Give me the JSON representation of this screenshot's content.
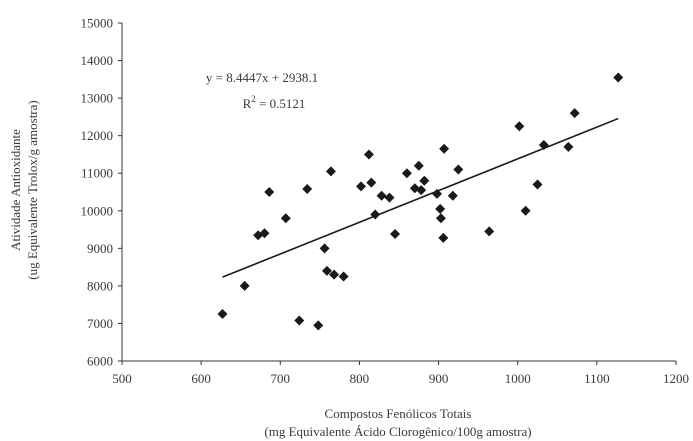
{
  "chart_data": {
    "type": "scatter",
    "title": "",
    "xlabel": [
      "Compostos Fenólicos Totais",
      "(mg Equivalente Ácido Clorogênico/100g amostra)"
    ],
    "ylabel": [
      "Atividade Antioxidante",
      "(ug Equivalente Trolox/g amostra)"
    ],
    "xlim": [
      500,
      1200
    ],
    "ylim": [
      6000,
      15000
    ],
    "x_ticks": [
      500,
      600,
      700,
      800,
      900,
      1000,
      1100,
      1200
    ],
    "y_ticks": [
      6000,
      7000,
      8000,
      9000,
      10000,
      11000,
      12000,
      13000,
      14000,
      15000
    ],
    "grid": false,
    "marker": "diamond",
    "marker_color": "#1a1a1a",
    "points": [
      [
        627,
        7250
      ],
      [
        655,
        8000
      ],
      [
        672,
        9350
      ],
      [
        680,
        9400
      ],
      [
        686,
        10500
      ],
      [
        707,
        9800
      ],
      [
        724,
        7080
      ],
      [
        734,
        10580
      ],
      [
        748,
        6950
      ],
      [
        756,
        9000
      ],
      [
        759,
        8400
      ],
      [
        764,
        11050
      ],
      [
        768,
        8300
      ],
      [
        780,
        8250
      ],
      [
        802,
        10650
      ],
      [
        812,
        11500
      ],
      [
        815,
        10750
      ],
      [
        820,
        9900
      ],
      [
        828,
        10400
      ],
      [
        838,
        10350
      ],
      [
        845,
        9380
      ],
      [
        860,
        11000
      ],
      [
        870,
        10600
      ],
      [
        875,
        11200
      ],
      [
        878,
        10550
      ],
      [
        882,
        10800
      ],
      [
        898,
        10450
      ],
      [
        902,
        10050
      ],
      [
        903,
        9800
      ],
      [
        906,
        9280
      ],
      [
        907,
        11650
      ],
      [
        918,
        10400
      ],
      [
        925,
        11100
      ],
      [
        964,
        9450
      ],
      [
        1002,
        12250
      ],
      [
        1010,
        10000
      ],
      [
        1025,
        10700
      ],
      [
        1033,
        11750
      ],
      [
        1064,
        11700
      ],
      [
        1072,
        12600
      ],
      [
        1127,
        13550
      ]
    ],
    "trendline": {
      "slope": 8.4447,
      "intercept": 2938.1,
      "x_range": [
        627,
        1127
      ],
      "color": "#1a1a1a"
    },
    "annotations": {
      "equation": "y = 8.4447x + 2938.1",
      "r2_label": "R",
      "r2_exp": "2",
      "r2_value": " = 0.5121"
    }
  }
}
